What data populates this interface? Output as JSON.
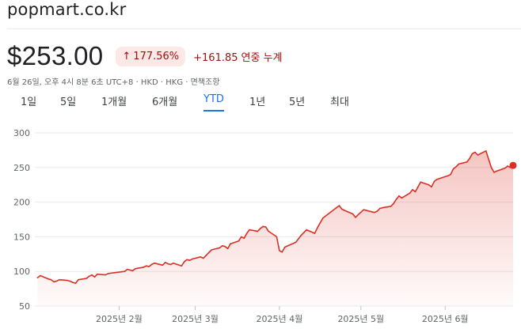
{
  "header": {
    "site": "popmart.co.kr"
  },
  "quote": {
    "price": "$253.00",
    "change_percent": "177.56%",
    "change_value": "+161.85",
    "change_label": "연중 누계",
    "meta": "6월 26일, 오후 4시 8분 6초 UTC+8 · HKD · HKG · 면책조항"
  },
  "tabs": [
    {
      "label": "1일"
    },
    {
      "label": "5일"
    },
    {
      "label": "1개월"
    },
    {
      "label": "6개월"
    },
    {
      "label": "YTD"
    },
    {
      "label": "1년"
    },
    {
      "label": "5년"
    },
    {
      "label": "최대"
    }
  ],
  "active_tab": "YTD",
  "colors": {
    "line": "#d93025",
    "fill": "#fce8e6",
    "grid": "#e8eaed",
    "accent": "#1a73e8"
  },
  "chart_data": {
    "type": "area",
    "x_axis": "date",
    "x": [
      "2025-01-02",
      "2025-01-03",
      "2025-01-06",
      "2025-01-07",
      "2025-01-08",
      "2025-01-09",
      "2025-01-10",
      "2025-01-13",
      "2025-01-14",
      "2025-01-15",
      "2025-01-16",
      "2025-01-17",
      "2025-01-20",
      "2025-01-21",
      "2025-01-22",
      "2025-01-23",
      "2025-01-24",
      "2025-01-27",
      "2025-01-28",
      "2025-02-03",
      "2025-02-04",
      "2025-02-05",
      "2025-02-06",
      "2025-02-07",
      "2025-02-10",
      "2025-02-11",
      "2025-02-12",
      "2025-02-13",
      "2025-02-14",
      "2025-02-17",
      "2025-02-18",
      "2025-02-19",
      "2025-02-20",
      "2025-02-21",
      "2025-02-24",
      "2025-02-25",
      "2025-02-26",
      "2025-02-27",
      "2025-02-28",
      "2025-03-03",
      "2025-03-04",
      "2025-03-05",
      "2025-03-06",
      "2025-03-07",
      "2025-03-10",
      "2025-03-11",
      "2025-03-12",
      "2025-03-13",
      "2025-03-14",
      "2025-03-17",
      "2025-03-18",
      "2025-03-19",
      "2025-03-20",
      "2025-03-21",
      "2025-03-24",
      "2025-03-25",
      "2025-03-26",
      "2025-03-27",
      "2025-03-28",
      "2025-03-31",
      "2025-04-01",
      "2025-04-02",
      "2025-04-03",
      "2025-04-07",
      "2025-04-08",
      "2025-04-09",
      "2025-04-10",
      "2025-04-11",
      "2025-04-14",
      "2025-04-15",
      "2025-04-16",
      "2025-04-17",
      "2025-04-22",
      "2025-04-23",
      "2025-04-24",
      "2025-04-25",
      "2025-04-28",
      "2025-04-29",
      "2025-04-30",
      "2025-05-02",
      "2025-05-06",
      "2025-05-07",
      "2025-05-08",
      "2025-05-09",
      "2025-05-12",
      "2025-05-13",
      "2025-05-14",
      "2025-05-15",
      "2025-05-16",
      "2025-05-19",
      "2025-05-20",
      "2025-05-21",
      "2025-05-22",
      "2025-05-23",
      "2025-05-26",
      "2025-05-27",
      "2025-05-28",
      "2025-05-29",
      "2025-06-02",
      "2025-06-03",
      "2025-06-04",
      "2025-06-05",
      "2025-06-06",
      "2025-06-09",
      "2025-06-10",
      "2025-06-11",
      "2025-06-12",
      "2025-06-13",
      "2025-06-16",
      "2025-06-17",
      "2025-06-18",
      "2025-06-19",
      "2025-06-20",
      "2025-06-23",
      "2025-06-24",
      "2025-06-25",
      "2025-06-26"
    ],
    "y": [
      91,
      94,
      89,
      88,
      85,
      86,
      88,
      87,
      86,
      84,
      83,
      88,
      90,
      93,
      95,
      92,
      96,
      95,
      97,
      100,
      103,
      102,
      101,
      104,
      106,
      108,
      107,
      110,
      112,
      109,
      113,
      111,
      110,
      112,
      108,
      114,
      117,
      116,
      118,
      121,
      119,
      123,
      127,
      131,
      134,
      137,
      136,
      133,
      140,
      144,
      150,
      148,
      155,
      160,
      158,
      162,
      165,
      164,
      158,
      150,
      130,
      128,
      135,
      142,
      147,
      152,
      156,
      160,
      155,
      163,
      170,
      177,
      192,
      195,
      190,
      188,
      183,
      178,
      182,
      189,
      185,
      187,
      191,
      192,
      194,
      198,
      204,
      209,
      206,
      213,
      218,
      215,
      222,
      229,
      225,
      222,
      230,
      233,
      238,
      240,
      248,
      251,
      255,
      258,
      263,
      270,
      272,
      268,
      274,
      262,
      250,
      243,
      245,
      249,
      252,
      250,
      253
    ],
    "ylim": [
      50,
      300
    ],
    "yticks": [
      "50",
      "100",
      "150",
      "200",
      "250",
      "300"
    ],
    "xticks": [
      "2025년 2월",
      "2025년 3월",
      "2025년 4월",
      "2025년 5월",
      "2025년 6월"
    ],
    "xtick_dates": [
      "2025-02-01",
      "2025-03-01",
      "2025-04-01",
      "2025-05-01",
      "2025-06-01"
    ],
    "last_value": 253,
    "grid": true
  }
}
